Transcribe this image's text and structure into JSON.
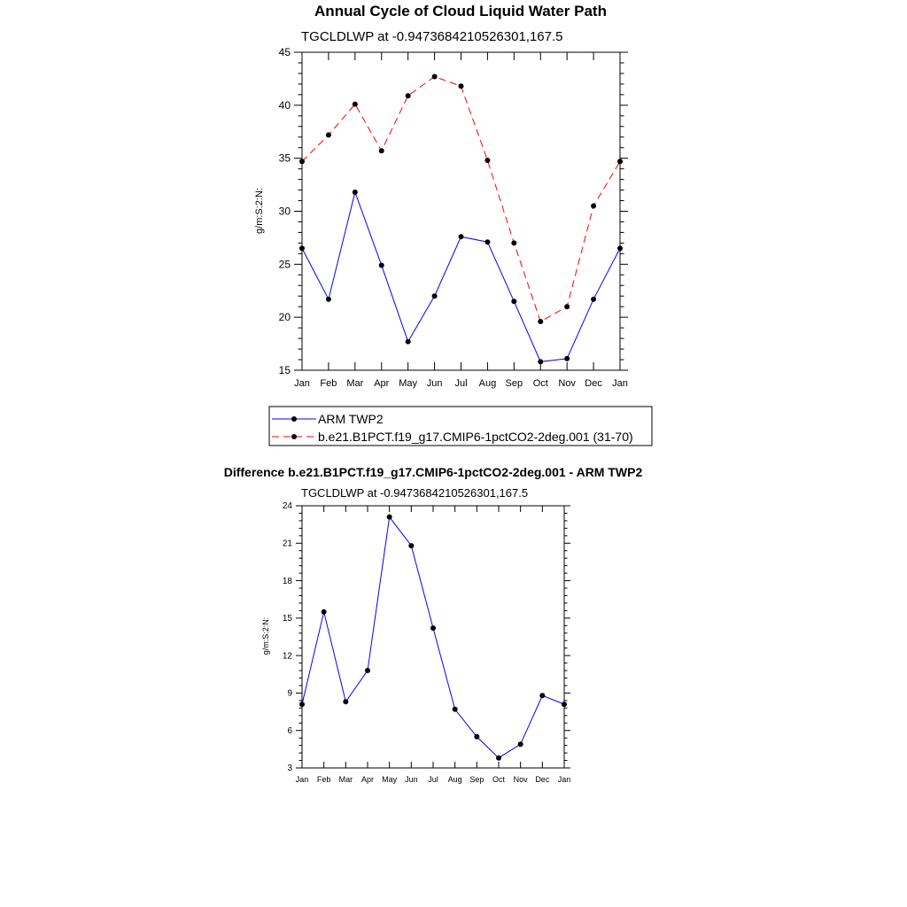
{
  "chart_data": [
    {
      "type": "line",
      "title": "Annual Cycle of Cloud Liquid Water Path",
      "subtitle": "TGCLDLWP at -0.9473684210526301,167.5",
      "ylabel": "g/m:S:2:N:",
      "xlabel": "",
      "categories": [
        "Jan",
        "Feb",
        "Mar",
        "Apr",
        "May",
        "Jun",
        "Jul",
        "Aug",
        "Sep",
        "Oct",
        "Nov",
        "Dec",
        "Jan"
      ],
      "ylim": [
        15,
        45
      ],
      "yticks": [
        "15",
        "20",
        "25",
        "30",
        "35",
        "40",
        "45"
      ],
      "grid": false,
      "series": [
        {
          "name": "ARM TWP2",
          "color": "#0000ff",
          "dash": "solid",
          "values": [
            26.5,
            21.7,
            31.8,
            24.9,
            17.7,
            22.0,
            27.6,
            27.1,
            21.5,
            15.8,
            16.1,
            21.7,
            26.5
          ]
        },
        {
          "name": "b.e21.B1PCT.f19_g17.CMIP6-1pctCO2-2deg.001 (31-70)",
          "color": "#ff0000",
          "dash": "dashed",
          "values": [
            34.7,
            37.2,
            40.1,
            35.7,
            40.9,
            42.7,
            41.8,
            34.8,
            27.0,
            19.6,
            21.0,
            30.5,
            34.7
          ]
        }
      ],
      "legend": "bottom"
    },
    {
      "type": "line",
      "title": "Difference b.e21.B1PCT.f19_g17.CMIP6-1pctCO2-2deg.001 - ARM TWP2",
      "subtitle": "TGCLDLWP at -0.9473684210526301,167.5",
      "ylabel": "g/m:S:2:N:",
      "xlabel": "",
      "categories": [
        "Jan",
        "Feb",
        "Mar",
        "Apr",
        "May",
        "Jun",
        "Jul",
        "Aug",
        "Sep",
        "Oct",
        "Nov",
        "Dec",
        "Jan"
      ],
      "ylim": [
        3,
        24
      ],
      "yticks": [
        "3",
        "6",
        "9",
        "12",
        "15",
        "18",
        "21",
        "24"
      ],
      "grid": false,
      "series": [
        {
          "color": "#0000ff",
          "dash": "solid",
          "values": [
            8.1,
            15.5,
            8.3,
            10.8,
            23.1,
            20.8,
            14.2,
            7.7,
            5.5,
            3.8,
            4.9,
            8.8,
            8.1
          ]
        }
      ]
    }
  ]
}
